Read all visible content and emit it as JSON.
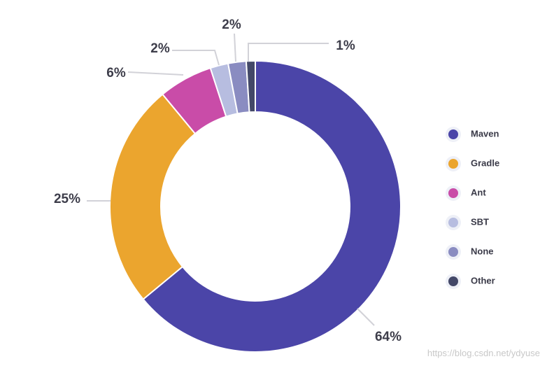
{
  "chart_data": {
    "type": "pie",
    "variant": "donut",
    "categories": [
      "Maven",
      "Gradle",
      "Ant",
      "SBT",
      "None",
      "Other"
    ],
    "values": [
      64,
      25,
      6,
      2,
      2,
      1
    ],
    "labels": [
      "64%",
      "25%",
      "6%",
      "2%",
      "2%",
      "1%"
    ],
    "colors": [
      "#4b45a8",
      "#eba52e",
      "#c94ca8",
      "#b7bde0",
      "#8a8cc1",
      "#434868"
    ],
    "legend": {
      "position": "right",
      "items": [
        "Maven",
        "Gradle",
        "Ant",
        "SBT",
        "None",
        "Other"
      ]
    },
    "title": "",
    "xlabel": "",
    "ylabel": ""
  },
  "watermark": "https://blog.csdn.net/ydyuse"
}
